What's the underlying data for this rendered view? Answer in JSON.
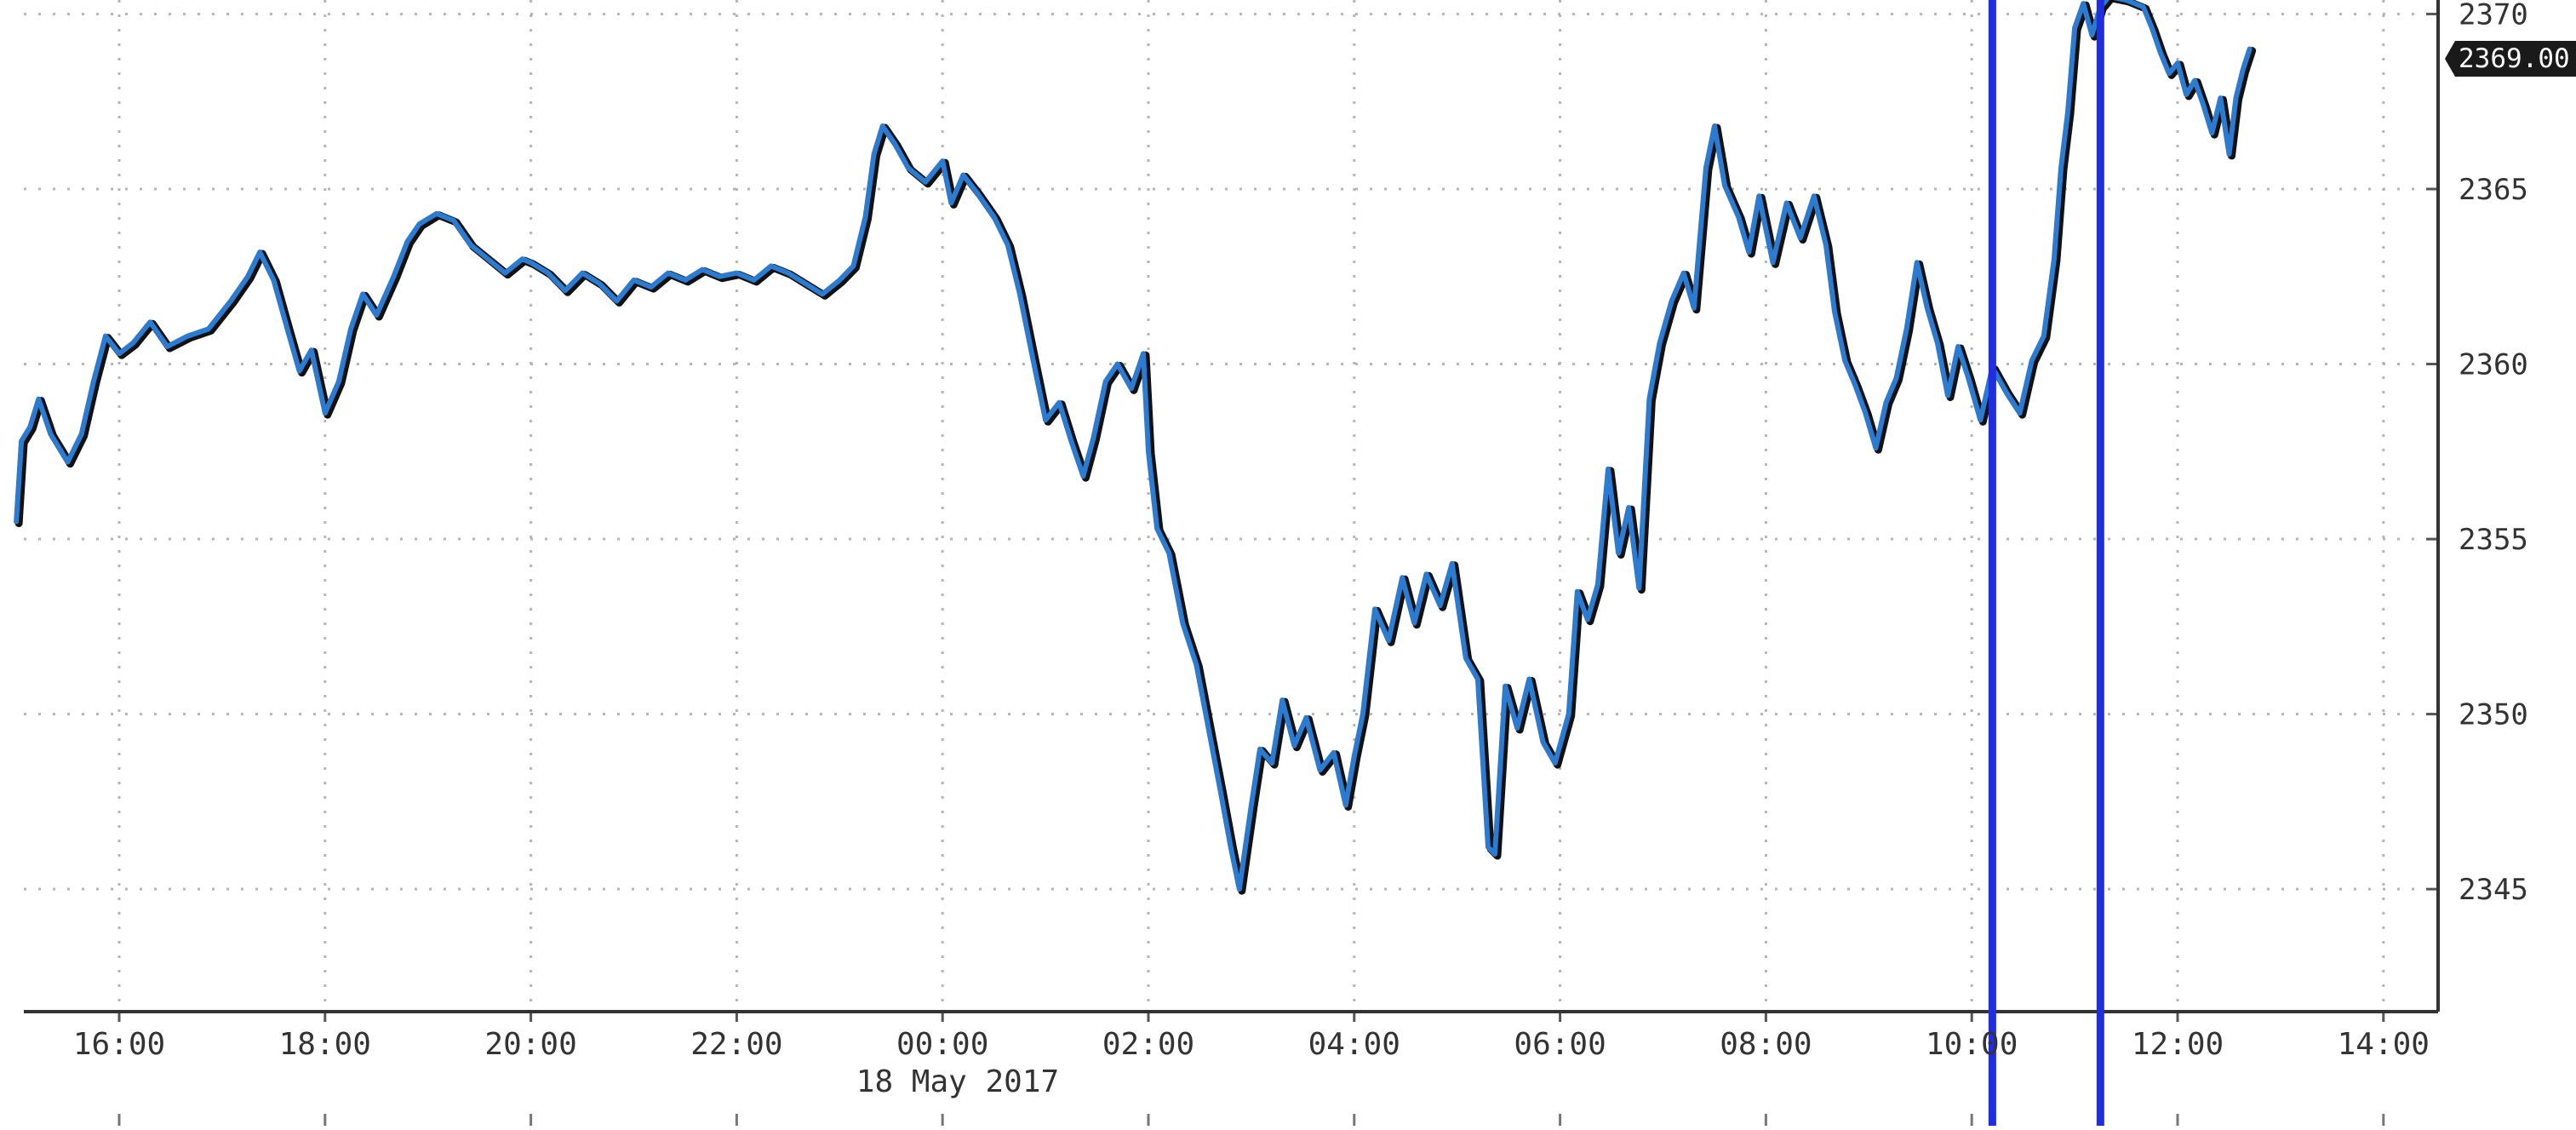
{
  "chart_data": {
    "type": "line",
    "date_label": "18 May 2017",
    "last_price_label": "2369.00",
    "x_ticks": [
      "16:00",
      "18:00",
      "20:00",
      "22:00",
      "00:00",
      "02:00",
      "04:00",
      "06:00",
      "08:00",
      "10:00",
      "12:00",
      "14:00"
    ],
    "y_ticks": [
      2345,
      2350,
      2355,
      2360,
      2365,
      2370
    ],
    "ylim": [
      2341.5,
      2370.4
    ],
    "grid": true,
    "y_axis_side": "right",
    "series": [
      {
        "color": "#2b7bd0",
        "shadow_color": "#111111",
        "points": [
          [
            "15:00",
            2355.5
          ],
          [
            "15:03",
            2357.8
          ],
          [
            "15:08",
            2358.2
          ],
          [
            "15:13",
            2359.0
          ],
          [
            "15:20",
            2358.0
          ],
          [
            "15:30",
            2357.2
          ],
          [
            "15:38",
            2358.0
          ],
          [
            "15:45",
            2359.5
          ],
          [
            "15:52",
            2360.8
          ],
          [
            "16:00",
            2360.3
          ],
          [
            "16:08",
            2360.6
          ],
          [
            "16:18",
            2361.2
          ],
          [
            "16:28",
            2360.5
          ],
          [
            "16:40",
            2360.8
          ],
          [
            "16:52",
            2361.0
          ],
          [
            "17:05",
            2361.8
          ],
          [
            "17:15",
            2362.5
          ],
          [
            "17:22",
            2363.2
          ],
          [
            "17:30",
            2362.4
          ],
          [
            "17:38",
            2361.0
          ],
          [
            "17:45",
            2359.8
          ],
          [
            "17:52",
            2360.4
          ],
          [
            "18:00",
            2358.6
          ],
          [
            "18:08",
            2359.5
          ],
          [
            "18:15",
            2361.0
          ],
          [
            "18:22",
            2362.0
          ],
          [
            "18:30",
            2361.4
          ],
          [
            "18:40",
            2362.5
          ],
          [
            "18:48",
            2363.5
          ],
          [
            "18:55",
            2364.0
          ],
          [
            "19:05",
            2364.3
          ],
          [
            "19:15",
            2364.1
          ],
          [
            "19:25",
            2363.4
          ],
          [
            "19:35",
            2363.0
          ],
          [
            "19:45",
            2362.6
          ],
          [
            "19:55",
            2363.0
          ],
          [
            "20:00",
            2362.9
          ],
          [
            "20:10",
            2362.6
          ],
          [
            "20:20",
            2362.1
          ],
          [
            "20:30",
            2362.6
          ],
          [
            "20:40",
            2362.3
          ],
          [
            "20:50",
            2361.8
          ],
          [
            "21:00",
            2362.4
          ],
          [
            "21:10",
            2362.2
          ],
          [
            "21:20",
            2362.6
          ],
          [
            "21:30",
            2362.4
          ],
          [
            "21:40",
            2362.7
          ],
          [
            "21:50",
            2362.5
          ],
          [
            "22:00",
            2362.6
          ],
          [
            "22:10",
            2362.4
          ],
          [
            "22:20",
            2362.8
          ],
          [
            "22:30",
            2362.6
          ],
          [
            "22:40",
            2362.3
          ],
          [
            "22:50",
            2362.0
          ],
          [
            "23:00",
            2362.4
          ],
          [
            "23:08",
            2362.8
          ],
          [
            "23:15",
            2364.2
          ],
          [
            "23:20",
            2366.0
          ],
          [
            "23:25",
            2366.8
          ],
          [
            "23:32",
            2366.3
          ],
          [
            "23:40",
            2365.6
          ],
          [
            "23:50",
            2365.2
          ],
          [
            "00:00",
            2365.8
          ],
          [
            "00:05",
            2364.6
          ],
          [
            "00:12",
            2365.4
          ],
          [
            "00:20",
            2364.9
          ],
          [
            "00:30",
            2364.2
          ],
          [
            "00:38",
            2363.4
          ],
          [
            "00:45",
            2362.0
          ],
          [
            "00:52",
            2360.3
          ],
          [
            "01:00",
            2358.4
          ],
          [
            "01:08",
            2358.9
          ],
          [
            "01:15",
            2357.8
          ],
          [
            "01:22",
            2356.8
          ],
          [
            "01:28",
            2357.9
          ],
          [
            "01:35",
            2359.5
          ],
          [
            "01:42",
            2360.0
          ],
          [
            "01:50",
            2359.3
          ],
          [
            "01:57",
            2360.3
          ],
          [
            "02:00",
            2357.5
          ],
          [
            "02:05",
            2355.3
          ],
          [
            "02:12",
            2354.6
          ],
          [
            "02:20",
            2352.6
          ],
          [
            "02:28",
            2351.4
          ],
          [
            "02:35",
            2349.6
          ],
          [
            "02:42",
            2347.8
          ],
          [
            "02:48",
            2346.2
          ],
          [
            "02:53",
            2345.0
          ],
          [
            "03:00",
            2347.4
          ],
          [
            "03:05",
            2349.0
          ],
          [
            "03:12",
            2348.6
          ],
          [
            "03:18",
            2350.4
          ],
          [
            "03:25",
            2349.1
          ],
          [
            "03:32",
            2349.9
          ],
          [
            "03:40",
            2348.4
          ],
          [
            "03:48",
            2348.9
          ],
          [
            "03:55",
            2347.4
          ],
          [
            "04:00",
            2348.8
          ],
          [
            "04:05",
            2350.0
          ],
          [
            "04:12",
            2353.0
          ],
          [
            "04:20",
            2352.1
          ],
          [
            "04:28",
            2353.9
          ],
          [
            "04:35",
            2352.6
          ],
          [
            "04:42",
            2354.0
          ],
          [
            "04:50",
            2353.1
          ],
          [
            "04:57",
            2354.3
          ],
          [
            "05:05",
            2351.6
          ],
          [
            "05:12",
            2351.0
          ],
          [
            "05:18",
            2346.2
          ],
          [
            "05:22",
            2346.0
          ],
          [
            "05:28",
            2350.8
          ],
          [
            "05:35",
            2349.6
          ],
          [
            "05:42",
            2351.0
          ],
          [
            "05:50",
            2349.2
          ],
          [
            "05:57",
            2348.6
          ],
          [
            "06:05",
            2350.0
          ],
          [
            "06:10",
            2353.5
          ],
          [
            "06:16",
            2352.7
          ],
          [
            "06:22",
            2353.7
          ],
          [
            "06:28",
            2357.0
          ],
          [
            "06:34",
            2354.6
          ],
          [
            "06:40",
            2355.9
          ],
          [
            "06:46",
            2353.6
          ],
          [
            "06:52",
            2359.0
          ],
          [
            "06:58",
            2360.6
          ],
          [
            "07:05",
            2361.8
          ],
          [
            "07:12",
            2362.6
          ],
          [
            "07:18",
            2361.6
          ],
          [
            "07:25",
            2365.6
          ],
          [
            "07:30",
            2366.8
          ],
          [
            "07:36",
            2365.1
          ],
          [
            "07:44",
            2364.2
          ],
          [
            "07:50",
            2363.2
          ],
          [
            "07:56",
            2364.8
          ],
          [
            "08:04",
            2362.9
          ],
          [
            "08:12",
            2364.6
          ],
          [
            "08:20",
            2363.6
          ],
          [
            "08:28",
            2364.8
          ],
          [
            "08:35",
            2363.4
          ],
          [
            "08:40",
            2361.5
          ],
          [
            "08:46",
            2360.1
          ],
          [
            "08:52",
            2359.4
          ],
          [
            "08:58",
            2358.6
          ],
          [
            "09:04",
            2357.6
          ],
          [
            "09:10",
            2358.9
          ],
          [
            "09:16",
            2359.6
          ],
          [
            "09:22",
            2361.0
          ],
          [
            "09:28",
            2362.9
          ],
          [
            "09:34",
            2361.6
          ],
          [
            "09:40",
            2360.6
          ],
          [
            "09:46",
            2359.1
          ],
          [
            "09:52",
            2360.5
          ],
          [
            "09:58",
            2359.6
          ],
          [
            "10:05",
            2358.4
          ],
          [
            "10:12",
            2359.9
          ],
          [
            "10:20",
            2359.2
          ],
          [
            "10:28",
            2358.6
          ],
          [
            "10:35",
            2360.1
          ],
          [
            "10:42",
            2360.8
          ],
          [
            "10:48",
            2363.0
          ],
          [
            "10:52",
            2365.6
          ],
          [
            "10:56",
            2367.2
          ],
          [
            "11:00",
            2369.6
          ],
          [
            "11:05",
            2370.3
          ],
          [
            "11:10",
            2369.4
          ],
          [
            "11:15",
            2370.2
          ],
          [
            "11:20",
            2370.5
          ],
          [
            "11:30",
            2370.4
          ],
          [
            "11:40",
            2370.2
          ],
          [
            "11:45",
            2369.6
          ],
          [
            "11:50",
            2368.9
          ],
          [
            "11:55",
            2368.3
          ],
          [
            "12:00",
            2368.6
          ],
          [
            "12:05",
            2367.7
          ],
          [
            "12:10",
            2368.1
          ],
          [
            "12:15",
            2367.4
          ],
          [
            "12:20",
            2366.6
          ],
          [
            "12:25",
            2367.6
          ],
          [
            "12:30",
            2366.0
          ],
          [
            "12:34",
            2367.6
          ],
          [
            "12:38",
            2368.4
          ],
          [
            "12:42",
            2369.0
          ]
        ]
      }
    ],
    "vertical_markers": [
      "10:12",
      "11:15"
    ],
    "marker_color": "#1f2ee0"
  }
}
